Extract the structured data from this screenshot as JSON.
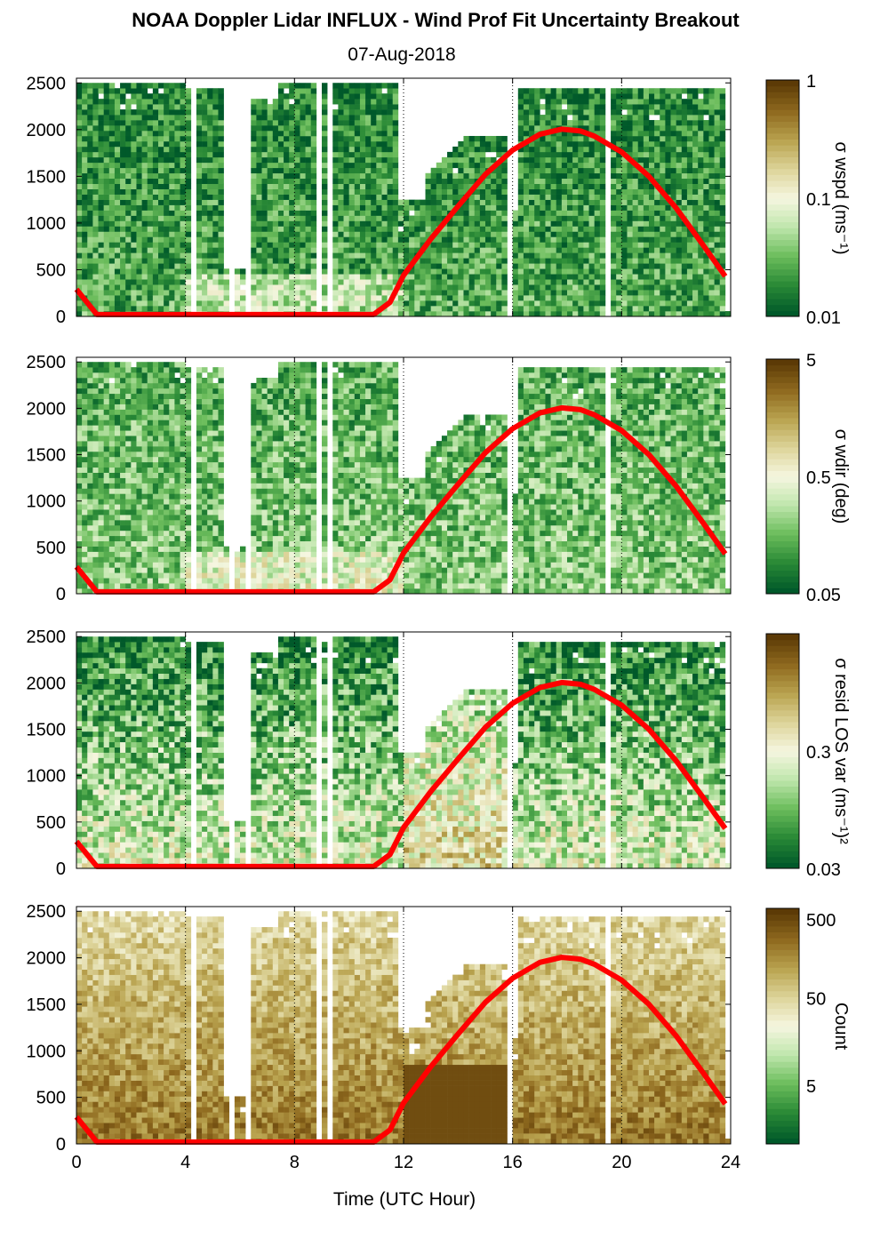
{
  "chart_data": {
    "type": "heatmap",
    "title": "NOAA Doppler Lidar INFLUX - Wind Prof Fit Uncertainty Breakout",
    "subtitle": "07-Aug-2018",
    "xlabel": "Time (UTC Hour)",
    "x_ticks": [
      0,
      4,
      8,
      12,
      16,
      20,
      24
    ],
    "xlim": [
      0,
      24
    ],
    "y_ticks": [
      0,
      500,
      1000,
      1500,
      2000,
      2500
    ],
    "ylim": [
      0,
      2550
    ],
    "grid": "vertical dotted lines every 4 h",
    "colormap": [
      "#00592a",
      "#2a8a36",
      "#6cbd5c",
      "#bfe6ac",
      "#f6f6e0",
      "#ddd49a",
      "#b9a34f",
      "#8f6a1f",
      "#5c3a06"
    ],
    "overlay_color": "#ff0000",
    "overlay_curve": {
      "name": "",
      "x": [
        0,
        0.75,
        10.9,
        11.5,
        12,
        13,
        14,
        15,
        16,
        17,
        17.8,
        18.5,
        19,
        20,
        21,
        22,
        23,
        23.8
      ],
      "y": [
        290,
        20,
        20,
        150,
        440,
        830,
        1180,
        1520,
        1780,
        1950,
        2005,
        1985,
        1930,
        1760,
        1500,
        1160,
        760,
        430
      ]
    },
    "panels": [
      {
        "id": "wspd",
        "colorbar_label": "σ wspd (ms⁻¹)",
        "colorbar_ticks": [
          "1",
          "0.1",
          "0.01"
        ],
        "value_range": [
          0.01,
          1
        ],
        "scale": "log",
        "typical_level": 0.2
      },
      {
        "id": "wdir",
        "colorbar_label": "σ wdir (deg)",
        "colorbar_ticks": [
          "5",
          "0.5",
          "0.05"
        ],
        "value_range": [
          0.05,
          5
        ],
        "scale": "log",
        "typical_level": 0.3
      },
      {
        "id": "resid",
        "colorbar_label": "σ resid LOS var (ms⁻¹)²",
        "colorbar_ticks": [
          "0.3",
          "0.03"
        ],
        "value_range": [
          0.03,
          3
        ],
        "scale": "log",
        "typical_level": 0.45
      },
      {
        "id": "count",
        "colorbar_label": "Count",
        "colorbar_ticks": [
          "500",
          "50",
          "5"
        ],
        "value_range": [
          2,
          500
        ],
        "scale": "log",
        "typical_level": 0.85
      }
    ]
  }
}
